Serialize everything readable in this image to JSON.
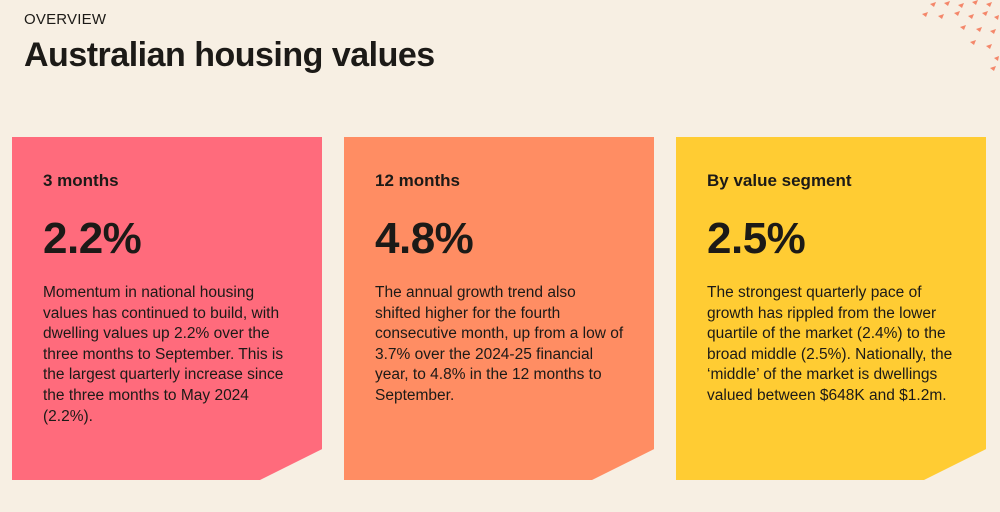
{
  "header": {
    "eyebrow": "OVERVIEW",
    "title": "Australian housing values"
  },
  "cards": [
    {
      "label": "3 months",
      "value": "2.2%",
      "body": "Momentum in national housing values has continued to build, with dwelling values up 2.2% over the three months to September. This is the largest quarterly increase since the three months to May 2024 (2.2%).",
      "color": "#ff6b7c"
    },
    {
      "label": "12 months",
      "value": "4.8%",
      "body": "The annual growth trend also shifted higher for the fourth consecutive month, up from a low of 3.7% over the 2024-25 financial year, to 4.8% in the 12 months to September.",
      "color": "#ff8d63"
    },
    {
      "label": "By value segment",
      "value": "2.5%",
      "body": "The strongest quarterly pace of growth has rippled from the lower quartile of the market (2.4%) to the broad middle (2.5%). Nationally, the ‘middle’ of the market is dwellings valued between $648K and $1.2m.",
      "color": "#ffcc33"
    }
  ],
  "decor_color": "#f4876a"
}
